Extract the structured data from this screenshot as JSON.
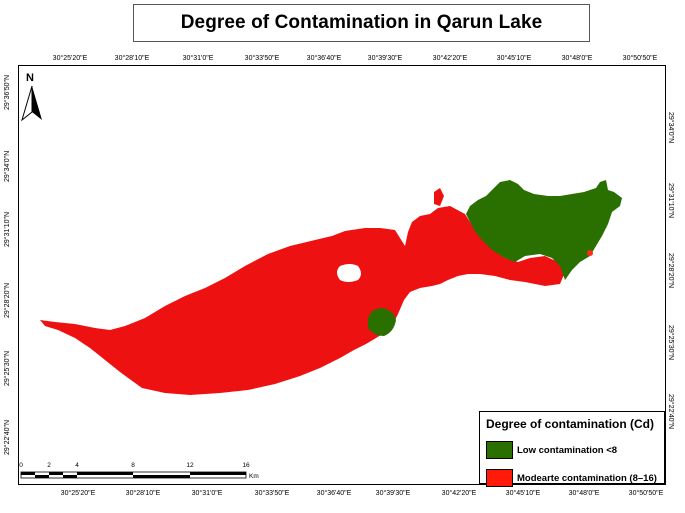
{
  "title": "Degree of Contamination in Qarun Lake",
  "north_label": "N",
  "top_ticks": [
    "30°25'20\"E",
    "30°28'10\"E",
    "30°31'0\"E",
    "30°33'50\"E",
    "30°36'40\"E",
    "30°39'30\"E",
    "30°42'20\"E",
    "30°45'10\"E",
    "30°48'0\"E",
    "30°50'50\"E"
  ],
  "bottom_ticks": [
    "30°25'20\"E",
    "30°28'10\"E",
    "30°31'0\"E",
    "30°33'50\"E",
    "30°36'40\"E",
    "30°39'30\"E",
    "30°42'20\"E",
    "30°45'10\"E",
    "30°48'0\"E",
    "30°50'50\"E"
  ],
  "left_ticks": [
    "29°36'50\"N",
    "29°34'0\"N",
    "29°31'10\"N",
    "29°28'20\"N",
    "29°25'30\"N",
    "29°22'40\"N"
  ],
  "right_ticks": [
    "29°34'0\"N",
    "29°31'10\"N",
    "29°28'20\"N",
    "29°25'30\"N",
    "29°22'40\"N"
  ],
  "legend": {
    "title": "Degree of contamination (Cd)",
    "items": [
      {
        "label": "Low  contamination <8",
        "color": "#2a7000"
      },
      {
        "label": "Modearte contamination (8–16)",
        "color": "#ff1a0a"
      }
    ]
  },
  "scale": {
    "labels": [
      "0",
      "2",
      "4",
      "8",
      "12",
      "16"
    ],
    "unit": "Km"
  },
  "colors": {
    "low": "#2a7000",
    "moderate": "#ee1111",
    "hotspot": "#ff2a1a"
  }
}
